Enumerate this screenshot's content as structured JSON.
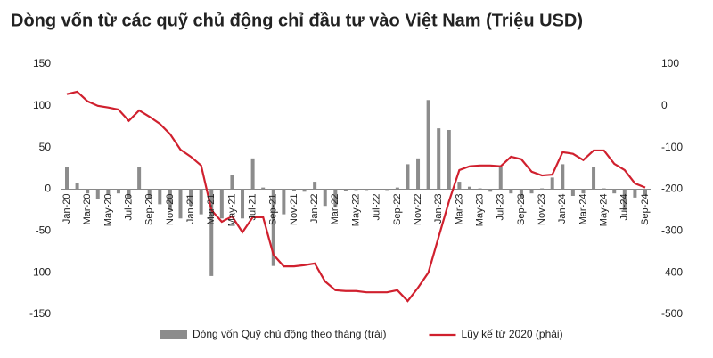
{
  "chart_data": {
    "type": "combo",
    "title": "Dòng vốn từ các quỹ chủ động chỉ đầu tư vào Việt Nam (Triệu USD)",
    "categories": [
      "Jan-20",
      null,
      "Mar-20",
      null,
      "May-20",
      null,
      "Jul-20",
      null,
      "Sep-20",
      null,
      "Nov-20",
      null,
      "Jan-21",
      null,
      "Mar-21",
      null,
      "May-21",
      null,
      "Jul-21",
      null,
      "Sep-21",
      null,
      "Nov-21",
      null,
      "Jan-22",
      null,
      "Mar-22",
      null,
      "May-22",
      null,
      "Jul-22",
      null,
      "Sep-22",
      null,
      "Nov-22",
      null,
      "Jan-23",
      null,
      "Mar-23",
      null,
      "May-23",
      null,
      "Jul-23",
      null,
      "Sep-23",
      null,
      "Nov-23",
      null,
      "Jan-24",
      null,
      "Mar-24",
      null,
      "May-24",
      null,
      "Jul-24",
      null,
      "Sep-24"
    ],
    "series": [
      {
        "name": "Dòng vốn Quỹ chủ động theo tháng (trái)",
        "type": "bar",
        "color": "#8c8c8c",
        "values": [
          27,
          7,
          -5,
          -12,
          -6,
          -5,
          -10,
          27,
          -12,
          -18,
          -25,
          -35,
          -20,
          -30,
          -104,
          -35,
          17,
          -35,
          37,
          2,
          -92,
          -30,
          -2,
          -3,
          9,
          -20,
          -22,
          -2,
          -1,
          -1,
          0,
          -1,
          2,
          30,
          37,
          107,
          73,
          71,
          9,
          3,
          1,
          -3,
          27,
          -5,
          -12,
          -5,
          1,
          14,
          30,
          -8,
          -5,
          27,
          1,
          -5,
          -25,
          -10,
          -8
        ]
      },
      {
        "name": "Lũy kế từ 2020 (phải)",
        "type": "line",
        "axis": "y2",
        "color": "#d0202e",
        "values": [
          28,
          34,
          11,
          0,
          -4,
          -9,
          -36,
          -11,
          -26,
          -43,
          -68,
          -105,
          -122,
          -143,
          -250,
          -278,
          -265,
          -303,
          -267,
          -267,
          -357,
          -385,
          -385,
          -382,
          -378,
          -421,
          -442,
          -444,
          -444,
          -447,
          -447,
          -447,
          -442,
          -468,
          -436,
          -400,
          -314,
          -229,
          -154,
          -145,
          -143,
          -143,
          -145,
          -122,
          -128,
          -158,
          -167,
          -165,
          -111,
          -115,
          -130,
          -107,
          -107,
          -139,
          -154,
          -186,
          -196
        ]
      }
    ],
    "ylim": [
      -150,
      150
    ],
    "yticks": [
      -150,
      -100,
      -50,
      0,
      50,
      100,
      150
    ],
    "y2lim": [
      -500,
      100
    ],
    "y2ticks": [
      -500,
      -400,
      -300,
      -200,
      -100,
      0,
      100
    ],
    "grid": false,
    "legend": "bottom"
  }
}
